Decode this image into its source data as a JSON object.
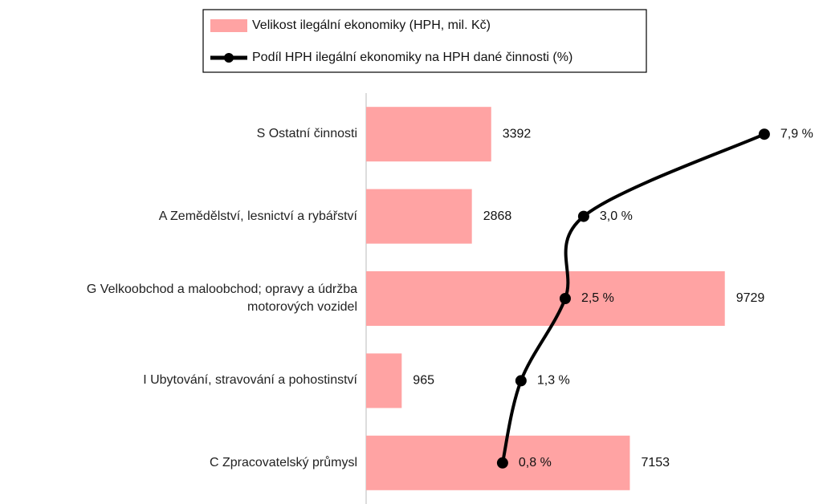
{
  "chart_data": {
    "type": "bar",
    "orientation": "horizontal",
    "categories": [
      "S Ostatní činnosti",
      "A Zemědělství, lesnictví a rybářství",
      "G Velkoobchod a maloobchod; opravy a údržba\nmotorových vozidel",
      "I Ubytování, stravování a pohostinství",
      "C Zpracovatelský průmysl"
    ],
    "series": [
      {
        "name": "Velikost ilegální ekonomiky (HPH, mil. Kč)",
        "type": "bar",
        "color": "#ffa3a3",
        "values": [
          3392,
          2868,
          9729,
          965,
          7153
        ]
      },
      {
        "name": "Podíl HPH ilegální ekonomiky na HPH dané činnosti (%)",
        "type": "line",
        "axis": "x2",
        "color": "#000000",
        "values": [
          7.9,
          3.0,
          2.5,
          1.3,
          0.8
        ],
        "value_labels": [
          "7,9 %",
          "3,0 %",
          "2,5 %",
          "1,3 %",
          "0,8 %"
        ]
      }
    ],
    "xlim": [
      0,
      12000
    ],
    "x2lim": [
      -2.9,
      9.1
    ],
    "legend": "top"
  }
}
